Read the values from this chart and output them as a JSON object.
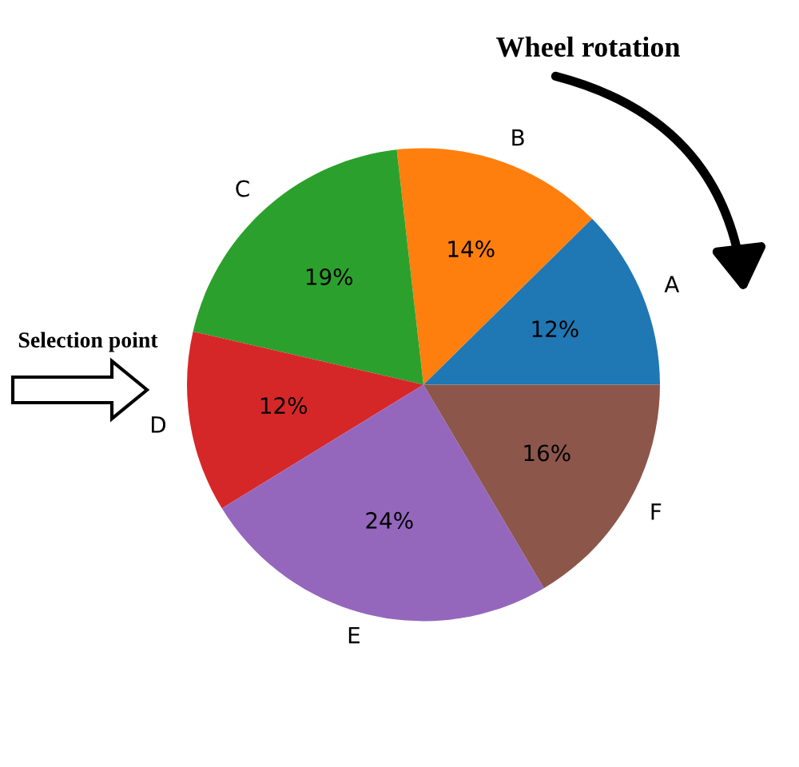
{
  "chart_data": {
    "type": "pie",
    "categories": [
      "A",
      "B",
      "C",
      "D",
      "E",
      "F"
    ],
    "values": [
      12,
      14,
      19,
      12,
      24,
      16
    ],
    "value_labels": [
      "12%",
      "14%",
      "19%",
      "12%",
      "24%",
      "16%"
    ],
    "colors": [
      "#1f77b4",
      "#ff7f0e",
      "#2ca02c",
      "#d62728",
      "#9467bd",
      "#8c564b"
    ],
    "annotations": [
      "Wheel rotation",
      "Selection point"
    ],
    "legend": false
  }
}
